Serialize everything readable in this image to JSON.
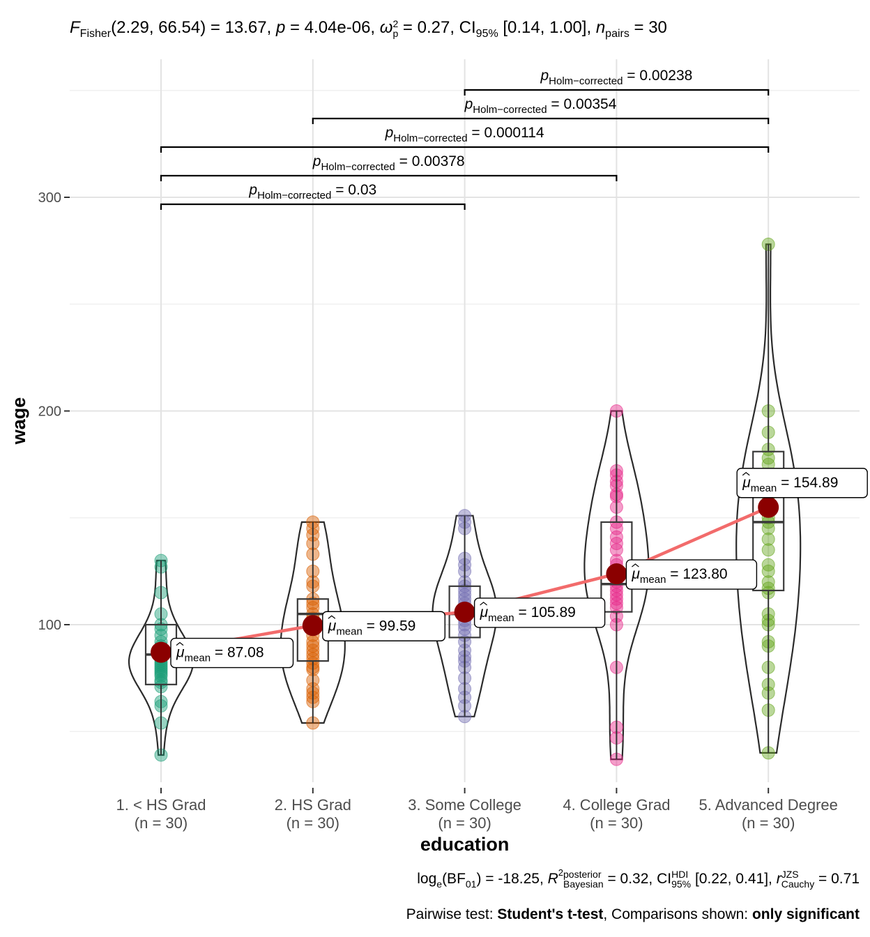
{
  "header": {
    "f_symbol": "F",
    "f_sub": "Fisher",
    "f_df": "(2.29, 66.54)",
    "f_value": " = 13.67, ",
    "p_symbol": "p",
    "p_value": " = 4.04e-06, ",
    "omega_symbol": "ω",
    "omega_sup": "2",
    "omega_sub": "p",
    "omega_value": " = 0.27, CI",
    "ci_sub": "95%",
    "ci_value": " [0.14, 1.00], ",
    "n_symbol": "n",
    "n_sub": "pairs",
    "n_value": " = 30"
  },
  "caption": {
    "bf_prefix": "log",
    "bf_log_sub": "e",
    "bf_open": "(BF",
    "bf_sub": "01",
    "bf_close": ") = -18.25, ",
    "r_symbol": "R",
    "r_sup": "2",
    "r_stack_top": "posterior",
    "r_stack_bottom": "Bayesian",
    "r_value": " = 0.32, CI",
    "hdi_sup": "HDI",
    "hdi_sub": "95%",
    "hdi_value": " [0.22, 0.41], ",
    "rc_symbol": "r",
    "rc_sup": "JZS",
    "rc_sub": "Cauchy",
    "rc_value": " = 0.71",
    "pairwise_prefix": "Pairwise test: ",
    "pairwise_test": "Student's t-test",
    "comparisons_prefix": ", Comparisons shown: ",
    "comparisons_value": "only significant"
  },
  "chart_data": {
    "type": "violin-box-scatter",
    "xlabel": "education",
    "ylabel": "wage",
    "ylim": [
      28,
      357
    ],
    "y_ticks": [
      100,
      200,
      300
    ],
    "grid": true,
    "categories": [
      "1. < HS Grad",
      "2. HS Grad",
      "3. Some College",
      "4. College Grad",
      "5. Advanced Degree"
    ],
    "n_labels": [
      "(n = 30)",
      "(n = 30)",
      "(n = 30)",
      "(n = 30)",
      "(n = 30)"
    ],
    "colors": [
      "#1B9E77",
      "#D95F02",
      "#7570B3",
      "#E7298A",
      "#66A61E"
    ],
    "mean_color": "#8B0000",
    "mean_line_color": "#F26B6B",
    "means": [
      87.08,
      99.59,
      105.89,
      123.8,
      154.89
    ],
    "mean_labels": [
      "87.08",
      "99.59",
      "105.89",
      "123.80",
      "154.89"
    ],
    "mean_label_prefix": "μ",
    "mean_label_sub": "mean",
    "boxes": [
      {
        "min": 39,
        "q1": 72,
        "median": 86,
        "q3": 100,
        "max": 130
      },
      {
        "min": 54,
        "q1": 83,
        "median": 105,
        "q3": 112,
        "max": 148
      },
      {
        "min": 57,
        "q1": 94,
        "median": 105,
        "q3": 118,
        "max": 151
      },
      {
        "min": 37,
        "q1": 106,
        "median": 119,
        "q3": 148,
        "max": 200
      },
      {
        "min": 40,
        "q1": 116,
        "median": 148,
        "q3": 181,
        "max": 278
      }
    ],
    "points": [
      [
        39,
        54,
        62,
        64,
        71,
        73,
        74,
        76,
        77,
        78,
        79,
        80,
        81,
        82,
        83,
        84,
        85,
        86,
        86,
        87,
        88,
        90,
        92,
        95,
        98,
        100,
        105,
        115,
        127,
        130
      ],
      [
        54,
        64,
        66,
        68,
        70,
        74,
        79,
        80,
        82,
        84,
        86,
        88,
        90,
        92,
        95,
        98,
        100,
        103,
        105,
        108,
        110,
        112,
        118,
        120,
        125,
        133,
        138,
        142,
        145,
        148
      ],
      [
        57,
        62,
        66,
        70,
        75,
        80,
        83,
        85,
        88,
        92,
        95,
        98,
        100,
        102,
        104,
        105,
        106,
        108,
        110,
        112,
        114,
        116,
        118,
        120,
        125,
        128,
        131,
        145,
        148,
        151
      ],
      [
        37,
        47,
        52,
        80,
        100,
        104,
        108,
        110,
        112,
        114,
        116,
        118,
        120,
        122,
        125,
        128,
        130,
        135,
        138,
        141,
        145,
        148,
        155,
        160,
        161,
        165,
        167,
        170,
        172,
        200
      ],
      [
        40,
        60,
        68,
        72,
        80,
        90,
        92,
        100,
        102,
        105,
        115,
        117,
        120,
        125,
        128,
        135,
        140,
        145,
        148,
        150,
        155,
        160,
        165,
        170,
        175,
        178,
        182,
        190,
        200,
        278
      ]
    ],
    "comparisons": [
      {
        "from": 0,
        "to": 2,
        "label": "0.03"
      },
      {
        "from": 0,
        "to": 3,
        "label": "0.00378"
      },
      {
        "from": 0,
        "to": 4,
        "label": "0.000114"
      },
      {
        "from": 1,
        "to": 4,
        "label": "0.00354"
      },
      {
        "from": 2,
        "to": 4,
        "label": "0.00238"
      }
    ],
    "comparison_prefix": "p",
    "comparison_sub": "Holm−corrected"
  }
}
